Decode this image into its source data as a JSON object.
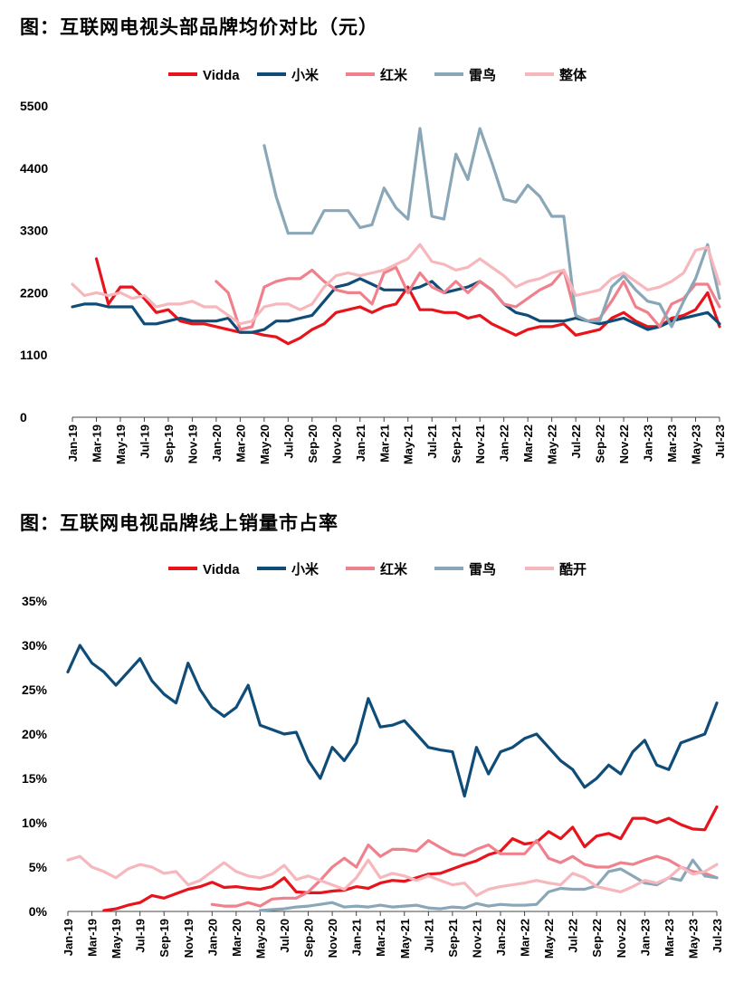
{
  "chart_data": [
    {
      "type": "line",
      "title": "图：互联网电视头部品牌均价对比（元）",
      "x": [
        "Jan-19",
        "Feb-19",
        "Mar-19",
        "Apr-19",
        "May-19",
        "Jun-19",
        "Jul-19",
        "Aug-19",
        "Sep-19",
        "Oct-19",
        "Nov-19",
        "Dec-19",
        "Jan-20",
        "Feb-20",
        "Mar-20",
        "Apr-20",
        "May-20",
        "Jun-20",
        "Jul-20",
        "Aug-20",
        "Sep-20",
        "Oct-20",
        "Nov-20",
        "Dec-20",
        "Jan-21",
        "Feb-21",
        "Mar-21",
        "Apr-21",
        "May-21",
        "Jun-21",
        "Jul-21",
        "Aug-21",
        "Sep-21",
        "Oct-21",
        "Nov-21",
        "Dec-21",
        "Jan-22",
        "Feb-22",
        "Mar-22",
        "Apr-22",
        "May-22",
        "Jun-22",
        "Jul-22",
        "Aug-22",
        "Sep-22",
        "Oct-22",
        "Nov-22",
        "Dec-22",
        "Jan-23",
        "Feb-23",
        "Mar-23",
        "Apr-23",
        "May-23",
        "Jun-23",
        "Jul-23"
      ],
      "x_tick_labels": [
        "Jan-19",
        "Mar-19",
        "May-19",
        "Jul-19",
        "Sep-19",
        "Nov-19",
        "Jan-20",
        "Mar-20",
        "May-20",
        "Jul-20",
        "Sep-20",
        "Nov-20",
        "Jan-21",
        "Mar-21",
        "May-21",
        "Jul-21",
        "Sep-21",
        "Nov-21",
        "Jan-22",
        "Mar-22",
        "May-22",
        "Jul-22",
        "Sep-22",
        "Nov-22",
        "Jan-23",
        "Mar-23",
        "May-23",
        "Jul-23"
      ],
      "y_ticks": [
        "0",
        "1100",
        "2200",
        "3300",
        "4400",
        "5500"
      ],
      "ylim": [
        0,
        5500
      ],
      "legend_position": "top",
      "series": [
        {
          "name": "Vidda",
          "color": "#e8141c",
          "values": [
            null,
            null,
            2800,
            2000,
            2300,
            2300,
            2100,
            1850,
            1900,
            1700,
            1650,
            1650,
            1600,
            1550,
            1500,
            1500,
            1450,
            1420,
            1300,
            1400,
            1550,
            1650,
            1850,
            1900,
            1950,
            1850,
            1950,
            2000,
            2300,
            1900,
            1900,
            1850,
            1850,
            1750,
            1800,
            1650,
            1550,
            1450,
            1550,
            1600,
            1600,
            1650,
            1450,
            1500,
            1550,
            1750,
            1850,
            1700,
            1600,
            1600,
            1750,
            1800,
            1900,
            2200,
            1600
          ]
        },
        {
          "name": "小米",
          "color": "#0f4d78",
          "values": [
            1950,
            2000,
            2000,
            1950,
            1950,
            1950,
            1650,
            1650,
            1700,
            1750,
            1700,
            1700,
            1700,
            1750,
            1500,
            1500,
            1550,
            1700,
            1700,
            1750,
            1800,
            2050,
            2300,
            2350,
            2450,
            2350,
            2250,
            2250,
            2250,
            2300,
            2400,
            2200,
            2250,
            2300,
            2400,
            2250,
            2000,
            1850,
            1800,
            1700,
            1700,
            1700,
            1750,
            1700,
            1650,
            1700,
            1750,
            1650,
            1550,
            1600,
            1700,
            1750,
            1800,
            1850,
            1650
          ]
        },
        {
          "name": "红米",
          "color": "#f0818c",
          "values": [
            null,
            null,
            null,
            null,
            null,
            null,
            null,
            null,
            null,
            null,
            null,
            null,
            2400,
            2200,
            1550,
            1600,
            2300,
            2400,
            2450,
            2450,
            2600,
            2400,
            2250,
            2200,
            2200,
            2000,
            2550,
            2650,
            2200,
            2550,
            2300,
            2200,
            2400,
            2200,
            2400,
            2250,
            2000,
            1950,
            2100,
            2250,
            2350,
            2600,
            1800,
            1700,
            1750,
            2050,
            2400,
            1950,
            1850,
            1600,
            2000,
            2100,
            2350,
            2350,
            1950
          ]
        },
        {
          "name": "雷鸟",
          "color": "#8aa7b8",
          "values": [
            null,
            null,
            null,
            null,
            null,
            null,
            null,
            null,
            null,
            null,
            null,
            null,
            null,
            null,
            null,
            null,
            4800,
            3900,
            3250,
            3250,
            3250,
            3650,
            3650,
            3650,
            3350,
            3400,
            4050,
            3700,
            3500,
            5100,
            3550,
            3500,
            4650,
            4200,
            5100,
            4500,
            3850,
            3800,
            4100,
            3900,
            3550,
            3550,
            1800,
            1700,
            1700,
            2300,
            2500,
            2250,
            2050,
            2000,
            1600,
            2050,
            2450,
            3050,
            2100
          ]
        },
        {
          "name": "整体",
          "color": "#f6b7bd",
          "values": [
            2350,
            2150,
            2200,
            2150,
            2200,
            2100,
            2150,
            1950,
            2000,
            2000,
            2050,
            1950,
            1950,
            1800,
            1650,
            1700,
            1950,
            2000,
            2000,
            1900,
            2000,
            2300,
            2500,
            2550,
            2500,
            2550,
            2600,
            2700,
            2800,
            3050,
            2750,
            2700,
            2600,
            2650,
            2800,
            2650,
            2500,
            2300,
            2400,
            2450,
            2550,
            2600,
            2150,
            2200,
            2250,
            2450,
            2550,
            2400,
            2250,
            2300,
            2400,
            2550,
            2950,
            3000,
            2350
          ]
        }
      ]
    },
    {
      "type": "line",
      "title": "图：互联网电视品牌线上销量市占率",
      "x": [
        "Jan-19",
        "Feb-19",
        "Mar-19",
        "Apr-19",
        "May-19",
        "Jun-19",
        "Jul-19",
        "Aug-19",
        "Sep-19",
        "Oct-19",
        "Nov-19",
        "Dec-19",
        "Jan-20",
        "Feb-20",
        "Mar-20",
        "Apr-20",
        "May-20",
        "Jun-20",
        "Jul-20",
        "Aug-20",
        "Sep-20",
        "Oct-20",
        "Nov-20",
        "Dec-20",
        "Jan-21",
        "Feb-21",
        "Mar-21",
        "Apr-21",
        "May-21",
        "Jun-21",
        "Jul-21",
        "Aug-21",
        "Sep-21",
        "Oct-21",
        "Nov-21",
        "Dec-21",
        "Jan-22",
        "Feb-22",
        "Mar-22",
        "Apr-22",
        "May-22",
        "Jun-22",
        "Jul-22",
        "Aug-22",
        "Sep-22",
        "Oct-22",
        "Nov-22",
        "Dec-22",
        "Jan-23",
        "Feb-23",
        "Mar-23",
        "Apr-23",
        "May-23",
        "Jun-23",
        "Jul-23"
      ],
      "x_tick_labels": [
        "Jan-19",
        "Mar-19",
        "May-19",
        "Jul-19",
        "Sep-19",
        "Nov-19",
        "Jan-20",
        "Mar-20",
        "May-20",
        "Jul-20",
        "Sep-20",
        "Nov-20",
        "Jan-21",
        "Mar-21",
        "May-21",
        "Jul-21",
        "Sep-21",
        "Nov-21",
        "Jan-22",
        "Mar-22",
        "May-22",
        "Jul-22",
        "Sep-22",
        "Nov-22",
        "Jan-23",
        "Mar-23",
        "May-23",
        "Jul-23"
      ],
      "y_ticks": [
        "0%",
        "5%",
        "10%",
        "15%",
        "20%",
        "25%",
        "30%",
        "35%"
      ],
      "ylim": [
        0,
        35
      ],
      "legend_position": "top",
      "series": [
        {
          "name": "Vidda",
          "color": "#e8141c",
          "values": [
            null,
            null,
            null,
            0.1,
            0.3,
            0.7,
            1.0,
            1.8,
            1.5,
            2.0,
            2.5,
            2.8,
            3.3,
            2.7,
            2.8,
            2.6,
            2.5,
            2.8,
            3.8,
            2.2,
            2.1,
            2.1,
            2.3,
            2.4,
            2.8,
            2.6,
            3.2,
            3.5,
            3.4,
            3.8,
            4.2,
            4.3,
            4.8,
            5.3,
            5.7,
            6.4,
            6.8,
            8.2,
            7.6,
            7.8,
            9.0,
            8.2,
            9.5,
            7.3,
            8.5,
            8.8,
            8.2,
            10.5,
            10.5,
            10.0,
            10.5,
            9.8,
            9.3,
            9.2,
            11.8
          ]
        },
        {
          "name": "小米",
          "color": "#0f4d78",
          "values": [
            27.0,
            30.0,
            28.0,
            27.0,
            25.5,
            27.0,
            28.5,
            26.0,
            24.5,
            23.5,
            28.0,
            25.0,
            23.0,
            22.0,
            23.0,
            25.5,
            21.0,
            20.5,
            20.0,
            20.2,
            17.0,
            15.0,
            18.5,
            17.0,
            19.0,
            24.0,
            20.8,
            21.0,
            21.5,
            20.0,
            18.5,
            18.2,
            18.0,
            13.0,
            18.5,
            15.5,
            18.0,
            18.5,
            19.5,
            20.0,
            18.5,
            17.0,
            16.0,
            14.0,
            15.0,
            16.5,
            15.5,
            18.0,
            19.3,
            16.5,
            16.0,
            19.0,
            19.5,
            20.0,
            23.5
          ]
        },
        {
          "name": "红米",
          "color": "#f0818c",
          "values": [
            null,
            null,
            null,
            null,
            null,
            null,
            null,
            null,
            null,
            null,
            null,
            null,
            0.8,
            0.6,
            0.6,
            1.0,
            0.6,
            1.4,
            1.5,
            1.5,
            2.2,
            3.5,
            5.0,
            6.0,
            5.0,
            7.5,
            6.2,
            7.0,
            7.0,
            6.8,
            8.0,
            7.2,
            6.5,
            6.3,
            7.0,
            7.5,
            6.5,
            6.5,
            6.5,
            8.0,
            6.0,
            5.5,
            6.2,
            5.3,
            5.0,
            5.0,
            5.5,
            5.3,
            5.8,
            6.2,
            5.8,
            5.0,
            4.5,
            4.3,
            3.8
          ]
        },
        {
          "name": "雷鸟",
          "color": "#8aa7b8",
          "values": [
            null,
            null,
            null,
            null,
            null,
            null,
            null,
            null,
            null,
            null,
            null,
            null,
            null,
            null,
            null,
            null,
            0.1,
            0.2,
            0.3,
            0.5,
            0.6,
            0.8,
            1.0,
            0.5,
            0.6,
            0.5,
            0.7,
            0.5,
            0.6,
            0.7,
            0.4,
            0.3,
            0.5,
            0.4,
            0.9,
            0.6,
            0.8,
            0.7,
            0.7,
            0.8,
            2.2,
            2.6,
            2.5,
            2.5,
            2.9,
            4.5,
            4.8,
            4.0,
            3.2,
            3.0,
            3.8,
            3.5,
            5.8,
            4.0,
            3.8
          ]
        },
        {
          "name": "酷开",
          "color": "#f6b7bd",
          "values": [
            5.8,
            6.2,
            5.0,
            4.5,
            3.8,
            4.8,
            5.3,
            5.0,
            4.3,
            4.5,
            3.0,
            3.5,
            4.5,
            5.5,
            4.5,
            4.0,
            3.8,
            4.2,
            5.2,
            3.6,
            4.0,
            3.5,
            3.0,
            2.5,
            3.8,
            5.8,
            3.8,
            4.3,
            4.0,
            3.5,
            4.0,
            3.5,
            3.0,
            3.2,
            1.8,
            2.5,
            2.8,
            3.0,
            3.2,
            3.5,
            3.2,
            3.0,
            4.3,
            3.8,
            2.8,
            2.5,
            2.2,
            2.8,
            3.5,
            3.2,
            3.8,
            5.0,
            4.2,
            4.5,
            5.3
          ]
        }
      ]
    }
  ]
}
